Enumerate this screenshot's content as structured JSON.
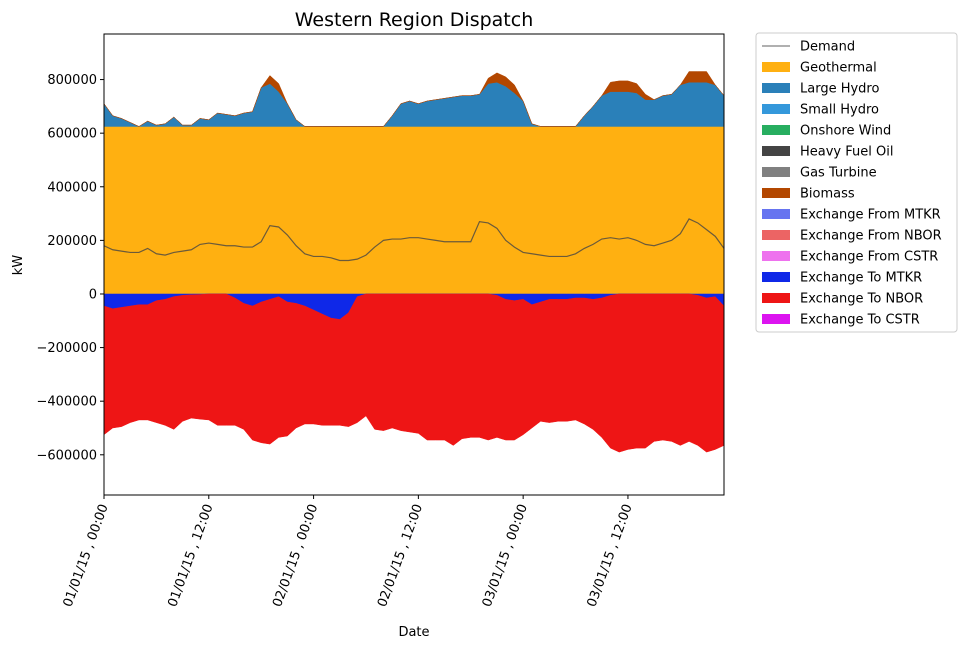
{
  "chart_data": {
    "type": "area",
    "title": "Western Region Dispatch",
    "xlabel": "Date",
    "ylabel": "kW",
    "xlim": [
      0,
      71
    ],
    "ylim": [
      -750000,
      970000
    ],
    "y_ticks": [
      -600000,
      -400000,
      -200000,
      0,
      200000,
      400000,
      600000,
      800000
    ],
    "y_tick_labels": [
      "−600000",
      "−400000",
      "−200000",
      "0",
      "200000",
      "400000",
      "600000",
      "800000"
    ],
    "x_ticks": [
      0,
      12,
      24,
      36,
      48,
      60
    ],
    "x_tick_labels": [
      "01/01/15 , 00:00",
      "01/01/15 , 12:00",
      "02/01/15 , 00:00",
      "02/01/15 , 12:00",
      "03/01/15 , 00:00",
      "03/01/15 , 12:00"
    ],
    "x_step_hours": 1,
    "legend_position": "outside-right",
    "legend": [
      {
        "name": "Demand",
        "color": "#808080",
        "kind": "line"
      },
      {
        "name": "Geothermal",
        "color": "#ffb011",
        "kind": "patch"
      },
      {
        "name": "Large Hydro",
        "color": "#2a80b9",
        "kind": "patch"
      },
      {
        "name": "Small Hydro",
        "color": "#3498db",
        "kind": "patch"
      },
      {
        "name": "Onshore Wind",
        "color": "#27ae60",
        "kind": "patch"
      },
      {
        "name": "Heavy Fuel Oil",
        "color": "#444444",
        "kind": "patch"
      },
      {
        "name": "Gas Turbine",
        "color": "#808080",
        "kind": "patch"
      },
      {
        "name": "Biomass",
        "color": "#b34700",
        "kind": "patch"
      },
      {
        "name": "Exchange From MTKR",
        "color": "#6674f0",
        "kind": "patch"
      },
      {
        "name": "Exchange From NBOR",
        "color": "#ec6464",
        "kind": "patch"
      },
      {
        "name": "Exchange From CSTR",
        "color": "#ee72ee",
        "kind": "patch"
      },
      {
        "name": "Exchange To MTKR",
        "color": "#0f28e8",
        "kind": "patch"
      },
      {
        "name": "Exchange To NBOR",
        "color": "#ee1515",
        "kind": "patch"
      },
      {
        "name": "Exchange To CSTR",
        "color": "#dc14f0",
        "kind": "patch"
      }
    ],
    "series": {
      "Geothermal": [
        625000,
        625000,
        625000,
        625000,
        625000,
        625000,
        625000,
        625000,
        625000,
        625000,
        625000,
        625000,
        625000,
        625000,
        625000,
        625000,
        625000,
        625000,
        625000,
        625000,
        625000,
        625000,
        625000,
        625000,
        625000,
        625000,
        625000,
        625000,
        625000,
        625000,
        625000,
        625000,
        625000,
        625000,
        625000,
        625000,
        625000,
        625000,
        625000,
        625000,
        625000,
        625000,
        625000,
        625000,
        625000,
        625000,
        625000,
        625000,
        625000,
        625000,
        625000,
        625000,
        625000,
        625000,
        625000,
        625000,
        625000,
        625000,
        625000,
        625000,
        625000,
        625000,
        625000,
        625000,
        625000,
        625000,
        625000,
        625000,
        625000,
        625000,
        625000,
        625000
      ],
      "Large Hydro": [
        85000,
        40000,
        30000,
        15000,
        0,
        20000,
        5000,
        10000,
        35000,
        5000,
        5000,
        30000,
        25000,
        50000,
        45000,
        40000,
        50000,
        55000,
        145000,
        160000,
        130000,
        85000,
        25000,
        0,
        0,
        0,
        0,
        0,
        0,
        0,
        0,
        0,
        0,
        40000,
        85000,
        95000,
        85000,
        95000,
        100000,
        105000,
        110000,
        115000,
        115000,
        120000,
        160000,
        165000,
        150000,
        125000,
        95000,
        10000,
        0,
        0,
        0,
        0,
        0,
        40000,
        75000,
        115000,
        130000,
        130000,
        130000,
        125000,
        100000,
        100000,
        115000,
        120000,
        155000,
        165000,
        165000,
        165000,
        155000,
        115000
      ],
      "Biomass": [
        0,
        0,
        0,
        0,
        0,
        0,
        0,
        0,
        0,
        0,
        0,
        0,
        0,
        0,
        0,
        0,
        0,
        0,
        0,
        30000,
        30000,
        0,
        0,
        0,
        0,
        0,
        0,
        0,
        0,
        0,
        0,
        0,
        0,
        0,
        0,
        0,
        0,
        0,
        0,
        0,
        0,
        0,
        0,
        0,
        20000,
        35000,
        35000,
        30000,
        0,
        0,
        0,
        0,
        0,
        0,
        0,
        0,
        0,
        0,
        35000,
        40000,
        40000,
        35000,
        20000,
        0,
        0,
        0,
        0,
        40000,
        40000,
        40000,
        0,
        0
      ],
      "Exchange To MTKR": [
        -45000,
        -55000,
        -50000,
        -45000,
        -40000,
        -40000,
        -25000,
        -20000,
        -10000,
        -5000,
        -3000,
        -2000,
        0,
        0,
        0,
        -15000,
        -35000,
        -45000,
        -30000,
        -20000,
        -10000,
        -30000,
        -35000,
        -45000,
        -60000,
        -75000,
        -90000,
        -95000,
        -70000,
        -10000,
        0,
        0,
        0,
        0,
        0,
        0,
        0,
        0,
        0,
        0,
        0,
        0,
        0,
        0,
        0,
        -5000,
        -20000,
        -25000,
        -20000,
        -40000,
        -30000,
        -20000,
        -20000,
        -20000,
        -15000,
        -15000,
        -20000,
        -15000,
        -5000,
        0,
        0,
        0,
        0,
        0,
        0,
        0,
        0,
        0,
        -5000,
        -15000,
        -10000,
        -45000
      ],
      "Exchange To NBOR": [
        -480000,
        -445000,
        -445000,
        -435000,
        -430000,
        -430000,
        -455000,
        -470000,
        -495000,
        -470000,
        -460000,
        -465000,
        -470000,
        -490000,
        -490000,
        -475000,
        -470000,
        -500000,
        -525000,
        -540000,
        -525000,
        -500000,
        -465000,
        -440000,
        -425000,
        -415000,
        -400000,
        -395000,
        -425000,
        -470000,
        -455000,
        -505000,
        -510000,
        -500000,
        -510000,
        -515000,
        -520000,
        -545000,
        -545000,
        -545000,
        -565000,
        -540000,
        -535000,
        -535000,
        -545000,
        -530000,
        -525000,
        -520000,
        -505000,
        -460000,
        -445000,
        -460000,
        -455000,
        -455000,
        -455000,
        -470000,
        -485000,
        -520000,
        -570000,
        -590000,
        -580000,
        -575000,
        -575000,
        -550000,
        -545000,
        -550000,
        -565000,
        -550000,
        -560000,
        -575000,
        -570000,
        -520000
      ],
      "Demand": [
        180000,
        165000,
        160000,
        155000,
        155000,
        170000,
        150000,
        145000,
        155000,
        160000,
        165000,
        185000,
        190000,
        185000,
        180000,
        180000,
        175000,
        175000,
        195000,
        255000,
        250000,
        220000,
        180000,
        150000,
        140000,
        140000,
        135000,
        125000,
        125000,
        130000,
        145000,
        175000,
        200000,
        205000,
        205000,
        210000,
        210000,
        205000,
        200000,
        195000,
        195000,
        195000,
        195000,
        270000,
        265000,
        245000,
        200000,
        175000,
        155000,
        150000,
        145000,
        140000,
        140000,
        140000,
        150000,
        170000,
        185000,
        205000,
        210000,
        205000,
        210000,
        200000,
        185000,
        180000,
        190000,
        200000,
        225000,
        280000,
        265000,
        240000,
        215000,
        170000
      ]
    }
  }
}
